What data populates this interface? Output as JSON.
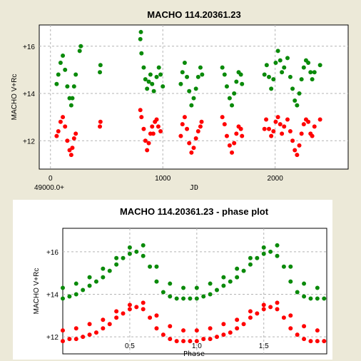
{
  "colors": {
    "red": "#ff0000",
    "green": "#0a8a0a",
    "grid": "#b4b4b4",
    "panel_bg": "#ece9d8"
  },
  "chart_data": [
    {
      "type": "scatter",
      "title": "MACHO 114.20361.23",
      "xlabel": "JD",
      "ylabel": "MACHO V+Rc",
      "x_offset_label": "49000.0+",
      "xlim": [
        -100,
        2650
      ],
      "ylim": [
        16.9,
        10.8
      ],
      "y_inverted": true,
      "grid": true,
      "x_ticks": [
        {
          "v": 0,
          "label": "0"
        },
        {
          "v": 1000,
          "label": "1000"
        },
        {
          "v": 2000,
          "label": "2000"
        }
      ],
      "y_ticks": [
        {
          "v": 12,
          "label": "+12"
        },
        {
          "v": 14,
          "label": "+14"
        },
        {
          "v": 16,
          "label": "+16"
        }
      ],
      "series": [
        {
          "color": "red",
          "points": [
            [
              55,
              12.2
            ],
            [
              70,
              12.4
            ],
            [
              90,
              12.8
            ],
            [
              110,
              13.0
            ],
            [
              130,
              12.6
            ],
            [
              150,
              12.0
            ],
            [
              170,
              11.6
            ],
            [
              185,
              11.4
            ],
            [
              195,
              11.7
            ],
            [
              210,
              12.1
            ],
            [
              225,
              12.3
            ],
            [
              440,
              12.6
            ],
            [
              445,
              12.8
            ],
            [
              800,
              13.3
            ],
            [
              810,
              13.0
            ],
            [
              830,
              12.5
            ],
            [
              845,
              12.0
            ],
            [
              860,
              11.6
            ],
            [
              875,
              11.9
            ],
            [
              890,
              12.3
            ],
            [
              905,
              12.6
            ],
            [
              915,
              12.3
            ],
            [
              930,
              12.8
            ],
            [
              945,
              12.9
            ],
            [
              960,
              12.6
            ],
            [
              980,
              12.4
            ],
            [
              1160,
              12.2
            ],
            [
              1175,
              12.7
            ],
            [
              1195,
              13.0
            ],
            [
              1215,
              12.5
            ],
            [
              1235,
              11.9
            ],
            [
              1255,
              11.5
            ],
            [
              1275,
              11.7
            ],
            [
              1295,
              12.1
            ],
            [
              1315,
              12.4
            ],
            [
              1335,
              12.6
            ],
            [
              1345,
              12.8
            ],
            [
              1530,
              13.0
            ],
            [
              1550,
              12.7
            ],
            [
              1570,
              12.2
            ],
            [
              1595,
              11.8
            ],
            [
              1615,
              11.5
            ],
            [
              1635,
              11.9
            ],
            [
              1655,
              12.3
            ],
            [
              1675,
              12.6
            ],
            [
              1695,
              12.5
            ],
            [
              1705,
              12.2
            ],
            [
              1905,
              12.5
            ],
            [
              1920,
              12.9
            ],
            [
              1945,
              12.5
            ],
            [
              1965,
              12.2
            ],
            [
              1985,
              12.4
            ],
            [
              2005,
              12.8
            ],
            [
              2025,
              13.0
            ],
            [
              2045,
              12.7
            ],
            [
              2060,
              12.3
            ],
            [
              2080,
              12.6
            ],
            [
              2110,
              12.9
            ],
            [
              2135,
              12.4
            ],
            [
              2155,
              12.0
            ],
            [
              2175,
              11.6
            ],
            [
              2195,
              11.4
            ],
            [
              2215,
              11.8
            ],
            [
              2235,
              12.3
            ],
            [
              2255,
              12.7
            ],
            [
              2275,
              12.9
            ],
            [
              2295,
              12.8
            ],
            [
              2315,
              12.3
            ],
            [
              2330,
              12.2
            ],
            [
              2350,
              12.6
            ],
            [
              2400,
              12.9
            ]
          ]
        },
        {
          "color": "green",
          "points": [
            [
              55,
              14.4
            ],
            [
              70,
              14.8
            ],
            [
              90,
              15.3
            ],
            [
              110,
              15.6
            ],
            [
              130,
              15.0
            ],
            [
              150,
              14.3
            ],
            [
              170,
              13.8
            ],
            [
              185,
              13.5
            ],
            [
              195,
              13.8
            ],
            [
              210,
              14.3
            ],
            [
              225,
              14.8
            ],
            [
              260,
              15.8
            ],
            [
              270,
              16.0
            ],
            [
              440,
              14.9
            ],
            [
              445,
              15.2
            ],
            [
              800,
              16.3
            ],
            [
              805,
              16.6
            ],
            [
              810,
              15.7
            ],
            [
              830,
              15.1
            ],
            [
              845,
              14.6
            ],
            [
              860,
              14.2
            ],
            [
              875,
              14.5
            ],
            [
              890,
              14.8
            ],
            [
              905,
              14.4
            ],
            [
              920,
              14.1
            ],
            [
              945,
              14.7
            ],
            [
              965,
              15.1
            ],
            [
              980,
              14.8
            ],
            [
              1000,
              14.3
            ],
            [
              1160,
              14.4
            ],
            [
              1175,
              14.9
            ],
            [
              1195,
              15.3
            ],
            [
              1215,
              14.7
            ],
            [
              1235,
              14.1
            ],
            [
              1255,
              13.5
            ],
            [
              1275,
              13.8
            ],
            [
              1295,
              14.2
            ],
            [
              1315,
              14.7
            ],
            [
              1335,
              15.1
            ],
            [
              1350,
              14.8
            ],
            [
              1530,
              15.1
            ],
            [
              1550,
              14.8
            ],
            [
              1570,
              14.3
            ],
            [
              1595,
              13.8
            ],
            [
              1615,
              13.5
            ],
            [
              1635,
              14.0
            ],
            [
              1655,
              14.5
            ],
            [
              1675,
              14.9
            ],
            [
              1695,
              14.8
            ],
            [
              1705,
              14.4
            ],
            [
              1905,
              14.8
            ],
            [
              1925,
              15.2
            ],
            [
              1945,
              14.7
            ],
            [
              1965,
              14.2
            ],
            [
              1985,
              14.6
            ],
            [
              2005,
              15.3
            ],
            [
              2025,
              15.8
            ],
            [
              2045,
              15.4
            ],
            [
              2060,
              14.9
            ],
            [
              2080,
              15.1
            ],
            [
              2110,
              15.5
            ],
            [
              2135,
              14.7
            ],
            [
              2155,
              14.2
            ],
            [
              2175,
              13.7
            ],
            [
              2195,
              13.5
            ],
            [
              2215,
              14.0
            ],
            [
              2235,
              14.6
            ],
            [
              2255,
              15.1
            ],
            [
              2275,
              15.4
            ],
            [
              2295,
              15.3
            ],
            [
              2315,
              14.9
            ],
            [
              2330,
              14.6
            ],
            [
              2350,
              14.9
            ],
            [
              2400,
              15.2
            ]
          ]
        }
      ]
    },
    {
      "type": "scatter",
      "title": "MACHO 114.20361.23 - phase plot",
      "xlabel": "Phase",
      "ylabel": "MACHO V+Rc",
      "xlim": [
        0,
        1.97
      ],
      "ylim": [
        17.1,
        11.2
      ],
      "y_inverted": true,
      "grid": true,
      "x_ticks": [
        {
          "v": 0.5,
          "label": "0.5"
        },
        {
          "v": 1.0,
          "label": "1.0"
        },
        {
          "v": 1.5,
          "label": "1.5"
        }
      ],
      "y_ticks": [
        {
          "v": 12,
          "label": "+12"
        },
        {
          "v": 14,
          "label": "+14"
        },
        {
          "v": 16,
          "label": "+16"
        }
      ],
      "series": [
        {
          "color": "red",
          "points": [
            [
              0.0,
              11.8
            ],
            [
              0.05,
              11.9
            ],
            [
              0.1,
              11.9
            ],
            [
              0.15,
              12.0
            ],
            [
              0.2,
              12.1
            ],
            [
              0.25,
              12.2
            ],
            [
              0.3,
              12.4
            ],
            [
              0.35,
              12.6
            ],
            [
              0.4,
              12.9
            ],
            [
              0.45,
              13.1
            ],
            [
              0.5,
              13.3
            ],
            [
              0.55,
              13.4
            ],
            [
              0.6,
              13.3
            ],
            [
              0.65,
              12.9
            ],
            [
              0.7,
              12.4
            ],
            [
              0.75,
              12.1
            ],
            [
              0.8,
              11.9
            ],
            [
              0.85,
              11.8
            ],
            [
              0.9,
              11.8
            ],
            [
              0.95,
              11.8
            ],
            [
              0.0,
              12.3
            ],
            [
              0.1,
              12.4
            ],
            [
              0.2,
              12.6
            ],
            [
              0.3,
              12.8
            ],
            [
              0.4,
              13.2
            ],
            [
              0.5,
              13.5
            ],
            [
              0.6,
              13.6
            ],
            [
              0.7,
              13.0
            ],
            [
              0.8,
              12.5
            ],
            [
              0.9,
              12.3
            ]
          ]
        },
        {
          "color": "green",
          "points": [
            [
              0.0,
              13.8
            ],
            [
              0.05,
              13.9
            ],
            [
              0.1,
              14.0
            ],
            [
              0.15,
              14.2
            ],
            [
              0.2,
              14.4
            ],
            [
              0.25,
              14.6
            ],
            [
              0.3,
              14.8
            ],
            [
              0.35,
              15.1
            ],
            [
              0.4,
              15.4
            ],
            [
              0.45,
              15.7
            ],
            [
              0.5,
              15.9
            ],
            [
              0.55,
              16.0
            ],
            [
              0.6,
              15.8
            ],
            [
              0.65,
              15.3
            ],
            [
              0.7,
              14.6
            ],
            [
              0.75,
              14.1
            ],
            [
              0.8,
              13.9
            ],
            [
              0.85,
              13.8
            ],
            [
              0.9,
              13.8
            ],
            [
              0.95,
              13.8
            ],
            [
              0.0,
              14.3
            ],
            [
              0.1,
              14.5
            ],
            [
              0.2,
              14.8
            ],
            [
              0.3,
              15.2
            ],
            [
              0.4,
              15.7
            ],
            [
              0.5,
              16.2
            ],
            [
              0.6,
              16.3
            ],
            [
              0.7,
              15.3
            ],
            [
              0.8,
              14.5
            ],
            [
              0.9,
              14.3
            ]
          ]
        }
      ]
    }
  ]
}
